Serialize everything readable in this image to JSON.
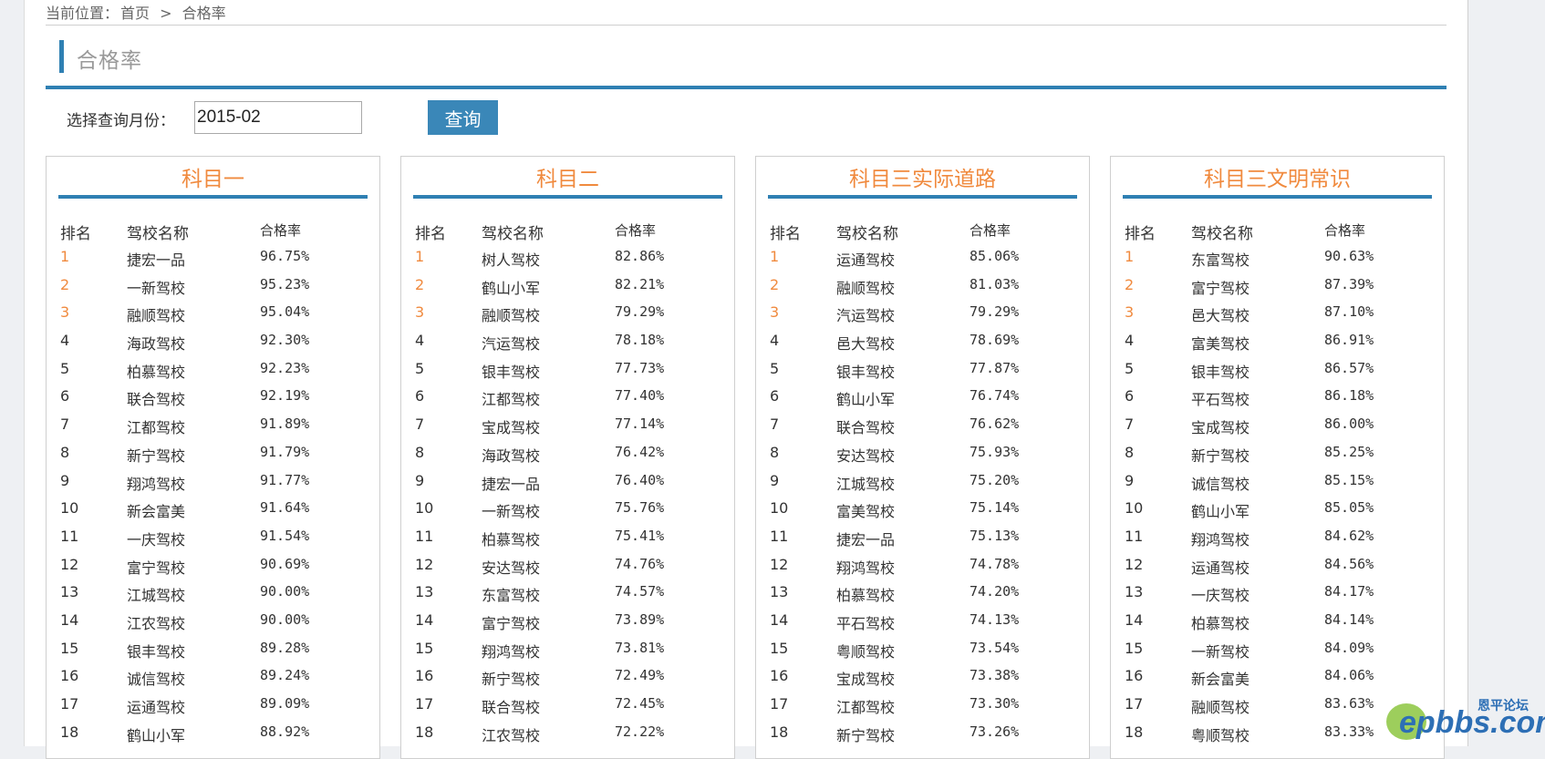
{
  "breadcrumb": {
    "prefix": "当前位置：",
    "home": "首页",
    "sep": ">",
    "current": "合格率"
  },
  "page_title": "合格率",
  "query": {
    "label": "选择查询月份：",
    "value": "2015-02",
    "button": "查询"
  },
  "headers": {
    "rank": "排名",
    "school": "驾校名称",
    "rate": "合格率"
  },
  "panels": [
    {
      "title": "科目一",
      "rows": [
        [
          "1",
          "捷宏一品",
          "96.75%"
        ],
        [
          "2",
          "一新驾校",
          "95.23%"
        ],
        [
          "3",
          "融顺驾校",
          "95.04%"
        ],
        [
          "4",
          "海政驾校",
          "92.30%"
        ],
        [
          "5",
          "柏慕驾校",
          "92.23%"
        ],
        [
          "6",
          "联合驾校",
          "92.19%"
        ],
        [
          "7",
          "江都驾校",
          "91.89%"
        ],
        [
          "8",
          "新宁驾校",
          "91.79%"
        ],
        [
          "9",
          "翔鸿驾校",
          "91.77%"
        ],
        [
          "10",
          "新会富美",
          "91.64%"
        ],
        [
          "11",
          "一庆驾校",
          "91.54%"
        ],
        [
          "12",
          "富宁驾校",
          "90.69%"
        ],
        [
          "13",
          "江城驾校",
          "90.00%"
        ],
        [
          "14",
          "江农驾校",
          "90.00%"
        ],
        [
          "15",
          "银丰驾校",
          "89.28%"
        ],
        [
          "16",
          "诚信驾校",
          "89.24%"
        ],
        [
          "17",
          "运通驾校",
          "89.09%"
        ],
        [
          "18",
          "鹤山小军",
          "88.92%"
        ]
      ]
    },
    {
      "title": "科目二",
      "rows": [
        [
          "1",
          "树人驾校",
          "82.86%"
        ],
        [
          "2",
          "鹤山小军",
          "82.21%"
        ],
        [
          "3",
          "融顺驾校",
          "79.29%"
        ],
        [
          "4",
          "汽运驾校",
          "78.18%"
        ],
        [
          "5",
          "银丰驾校",
          "77.73%"
        ],
        [
          "6",
          "江都驾校",
          "77.40%"
        ],
        [
          "7",
          "宝成驾校",
          "77.14%"
        ],
        [
          "8",
          "海政驾校",
          "76.42%"
        ],
        [
          "9",
          "捷宏一品",
          "76.40%"
        ],
        [
          "10",
          "一新驾校",
          "75.76%"
        ],
        [
          "11",
          "柏慕驾校",
          "75.41%"
        ],
        [
          "12",
          "安达驾校",
          "74.76%"
        ],
        [
          "13",
          "东富驾校",
          "74.57%"
        ],
        [
          "14",
          "富宁驾校",
          "73.89%"
        ],
        [
          "15",
          "翔鸿驾校",
          "73.81%"
        ],
        [
          "16",
          "新宁驾校",
          "72.49%"
        ],
        [
          "17",
          "联合驾校",
          "72.45%"
        ],
        [
          "18",
          "江农驾校",
          "72.22%"
        ]
      ]
    },
    {
      "title": "科目三实际道路",
      "rows": [
        [
          "1",
          "运通驾校",
          "85.06%"
        ],
        [
          "2",
          "融顺驾校",
          "81.03%"
        ],
        [
          "3",
          "汽运驾校",
          "79.29%"
        ],
        [
          "4",
          "邑大驾校",
          "78.69%"
        ],
        [
          "5",
          "银丰驾校",
          "77.87%"
        ],
        [
          "6",
          "鹤山小军",
          "76.74%"
        ],
        [
          "7",
          "联合驾校",
          "76.62%"
        ],
        [
          "8",
          "安达驾校",
          "75.93%"
        ],
        [
          "9",
          "江城驾校",
          "75.20%"
        ],
        [
          "10",
          "富美驾校",
          "75.14%"
        ],
        [
          "11",
          "捷宏一品",
          "75.13%"
        ],
        [
          "12",
          "翔鸿驾校",
          "74.78%"
        ],
        [
          "13",
          "柏慕驾校",
          "74.20%"
        ],
        [
          "14",
          "平石驾校",
          "74.13%"
        ],
        [
          "15",
          "粤顺驾校",
          "73.54%"
        ],
        [
          "16",
          "宝成驾校",
          "73.38%"
        ],
        [
          "17",
          "江都驾校",
          "73.30%"
        ],
        [
          "18",
          "新宁驾校",
          "73.26%"
        ]
      ]
    },
    {
      "title": "科目三文明常识",
      "rows": [
        [
          "1",
          "东富驾校",
          "90.63%"
        ],
        [
          "2",
          "富宁驾校",
          "87.39%"
        ],
        [
          "3",
          "邑大驾校",
          "87.10%"
        ],
        [
          "4",
          "富美驾校",
          "86.91%"
        ],
        [
          "5",
          "银丰驾校",
          "86.57%"
        ],
        [
          "6",
          "平石驾校",
          "86.18%"
        ],
        [
          "7",
          "宝成驾校",
          "86.00%"
        ],
        [
          "8",
          "新宁驾校",
          "85.25%"
        ],
        [
          "9",
          "诚信驾校",
          "85.15%"
        ],
        [
          "10",
          "鹤山小军",
          "85.05%"
        ],
        [
          "11",
          "翔鸿驾校",
          "84.62%"
        ],
        [
          "12",
          "运通驾校",
          "84.56%"
        ],
        [
          "13",
          "一庆驾校",
          "84.17%"
        ],
        [
          "14",
          "柏慕驾校",
          "84.14%"
        ],
        [
          "15",
          "一新驾校",
          "84.09%"
        ],
        [
          "16",
          "新会富美",
          "84.06%"
        ],
        [
          "17",
          "融顺驾校",
          "83.63%"
        ],
        [
          "18",
          "粤顺驾校",
          "83.33%"
        ]
      ]
    }
  ],
  "watermark": {
    "top": "恩平论坛",
    "main": "epbbs.com"
  },
  "colors": {
    "accent": "#2f80b3",
    "highlight": "#f08a3e",
    "button": "#3a87b8"
  }
}
